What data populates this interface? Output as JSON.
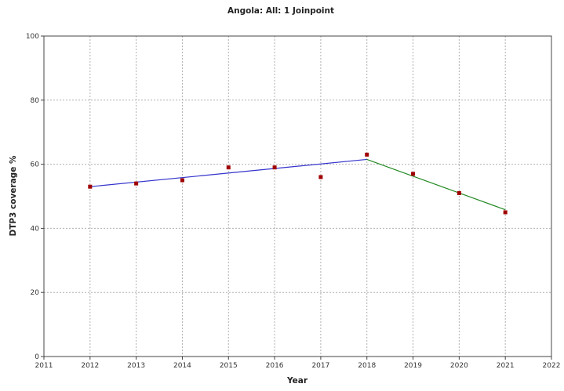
{
  "chart_data": {
    "type": "scatter",
    "title": "Angola: All: 1 Joinpoint",
    "xlabel": "Year",
    "ylabel": "DTP3 coverage %",
    "xlim": [
      2011,
      2022
    ],
    "ylim": [
      0,
      100
    ],
    "x_ticks": [
      "2011",
      "2012",
      "2013",
      "2014",
      "2015",
      "2016",
      "2017",
      "2018",
      "2019",
      "2020",
      "2021",
      "2022"
    ],
    "y_ticks": [
      "0",
      "20",
      "40",
      "60",
      "80",
      "100"
    ],
    "grid": true,
    "points": {
      "x": [
        2012,
        2013,
        2014,
        2015,
        2016,
        2017,
        2018,
        2019,
        2020,
        2021
      ],
      "y": [
        53,
        54,
        55,
        59,
        59,
        56,
        63,
        57,
        51,
        45
      ],
      "color": "#a00000"
    },
    "fitted_segments": [
      {
        "x": [
          2012,
          2018
        ],
        "y": [
          53,
          61.5
        ],
        "color": "#3333cc"
      },
      {
        "x": [
          2018,
          2021
        ],
        "y": [
          61.5,
          45.8
        ],
        "color": "#228822"
      }
    ]
  }
}
